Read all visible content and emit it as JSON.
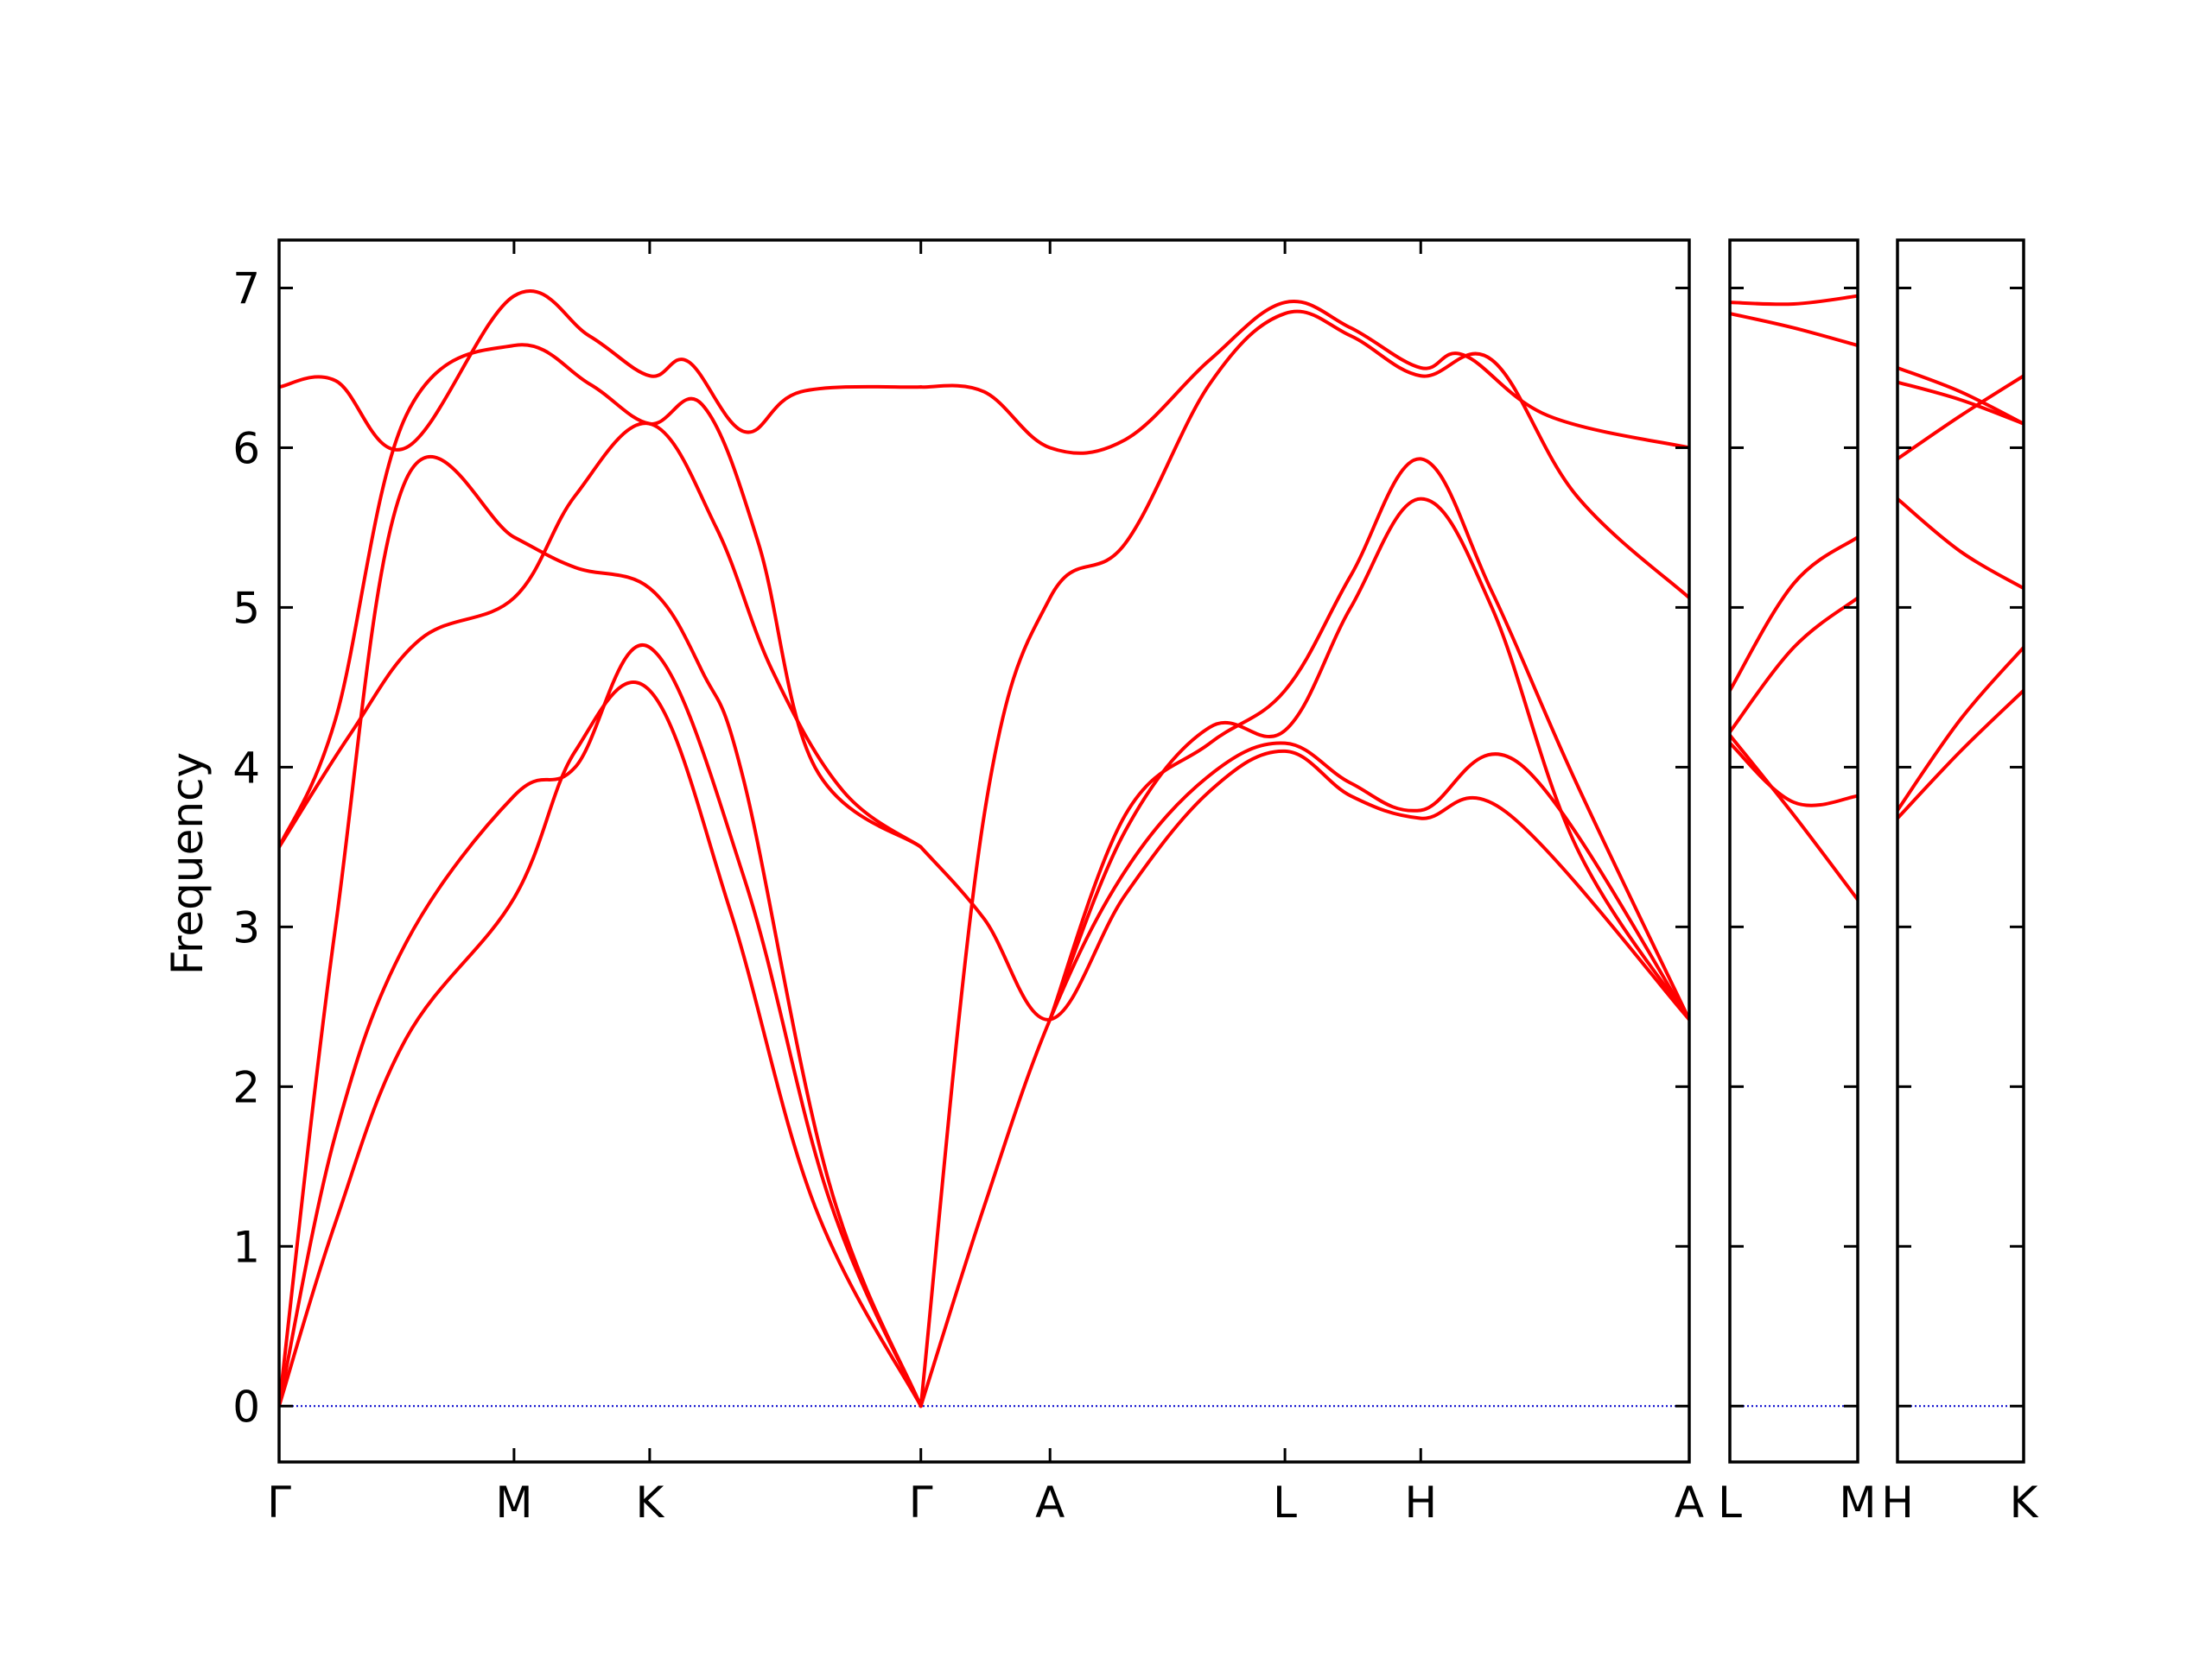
{
  "chart_data": {
    "type": "line",
    "ylabel": "Frequency",
    "ylim": [
      -0.35,
      7.3
    ],
    "y_ticks": [
      "0",
      "1",
      "2",
      "3",
      "4",
      "5",
      "6",
      "7"
    ],
    "y_tick_values": [
      0,
      1,
      2,
      3,
      4,
      5,
      6,
      7
    ],
    "line_color": "#ff0000",
    "zero_line_color": "#0000cc",
    "frame_color": "#000000",
    "panels": [
      {
        "name": "panel-main",
        "xlim": [
          0,
          1
        ],
        "x_ticks": [
          {
            "label": "Γ",
            "x": 0.0
          },
          {
            "label": "M",
            "x": 0.1666
          },
          {
            "label": "K",
            "x": 0.2628
          },
          {
            "label": "Γ",
            "x": 0.4551
          },
          {
            "label": "A",
            "x": 0.5467
          },
          {
            "label": "L",
            "x": 0.7133
          },
          {
            "label": "H",
            "x": 0.8096
          },
          {
            "label": "A",
            "x": 1.0
          }
        ],
        "series": [
          {
            "x": [
              0,
              0.04,
              0.09,
              0.1666,
              0.21,
              0.2628,
              0.32,
              0.38,
              0.4551
            ],
            "values": [
              0,
              1.15,
              2.3,
              3.18,
              4.1,
              4.48,
              3.1,
              1.25,
              0
            ]
          },
          {
            "x": [
              0,
              0.04,
              0.09,
              0.1666,
              0.21,
              0.2628,
              0.33,
              0.39,
              0.4551
            ],
            "values": [
              0,
              1.7,
              2.9,
              3.82,
              4.0,
              4.75,
              3.3,
              1.3,
              0
            ]
          },
          {
            "x": [
              0,
              0.04,
              0.09,
              0.1666,
              0.21,
              0.2628,
              0.3,
              0.33,
              0.39,
              0.4551
            ],
            "values": [
              0,
              3.0,
              5.8,
              5.44,
              5.25,
              5.12,
              4.6,
              3.9,
              1.4,
              0
            ]
          },
          {
            "x": [
              0,
              0.05,
              0.1,
              0.1666,
              0.21,
              0.2628,
              0.31,
              0.35,
              0.4,
              0.4551
            ],
            "values": [
              3.5,
              4.2,
              4.8,
              5.06,
              5.7,
              6.15,
              5.5,
              4.6,
              3.85,
              3.5
            ]
          },
          {
            "x": [
              0,
              0.04,
              0.09,
              0.1666,
              0.22,
              0.2628,
              0.3,
              0.34,
              0.38,
              0.4551
            ],
            "values": [
              3.5,
              4.3,
              6.2,
              6.64,
              6.4,
              6.15,
              6.27,
              5.4,
              4.0,
              3.5
            ]
          },
          {
            "x": [
              0,
              0.04,
              0.09,
              0.1666,
              0.22,
              0.2628,
              0.29,
              0.33,
              0.37,
              0.4551
            ],
            "values": [
              6.38,
              6.42,
              6.0,
              6.95,
              6.7,
              6.45,
              6.54,
              6.1,
              6.35,
              6.38
            ]
          },
          {
            "x": [
              0.4551,
              0.5,
              0.5467,
              0.6,
              0.66,
              0.7133,
              0.76,
              0.8096,
              0.87,
              1.0
            ],
            "values": [
              3.5,
              3.05,
              2.42,
              3.2,
              3.85,
              4.1,
              3.82,
              3.68,
              3.72,
              2.42
            ]
          },
          {
            "x": [
              0.4551,
              0.5,
              0.5467,
              0.6,
              0.66,
              0.7133,
              0.76,
              0.8096,
              0.88,
              1.0
            ],
            "values": [
              0,
              1.25,
              2.42,
              3.35,
              3.95,
              4.15,
              3.9,
              3.73,
              4.02,
              2.42
            ]
          },
          {
            "x": [
              0.5467,
              0.6,
              0.66,
              0.7133,
              0.76,
              0.8096,
              0.86,
              0.92,
              1.0
            ],
            "values": [
              2.42,
              3.6,
              4.25,
              4.23,
              5.0,
              5.68,
              5.0,
              3.5,
              2.42
            ]
          },
          {
            "x": [
              0.5467,
              0.6,
              0.66,
              0.7133,
              0.76,
              0.8096,
              0.86,
              0.92,
              1.0
            ],
            "values": [
              2.42,
              3.7,
              4.15,
              4.48,
              5.2,
              5.93,
              5.1,
              3.9,
              2.42
            ]
          },
          {
            "x": [
              0.4551,
              0.5,
              0.5467,
              0.6,
              0.66,
              0.7133,
              0.76,
              0.8096,
              0.86,
              0.92,
              1.0
            ],
            "values": [
              0,
              3.7,
              5.06,
              5.4,
              6.4,
              6.84,
              6.7,
              6.45,
              6.55,
              5.7,
              5.06
            ]
          },
          {
            "x": [
              0.4551,
              0.5,
              0.5467,
              0.6,
              0.66,
              0.7133,
              0.76,
              0.8096,
              0.84,
              0.9,
              1.0
            ],
            "values": [
              6.38,
              6.35,
              6.0,
              6.05,
              6.55,
              6.91,
              6.75,
              6.5,
              6.58,
              6.2,
              6.0
            ]
          }
        ]
      },
      {
        "name": "panel-lm",
        "xlim": [
          0,
          1
        ],
        "x_ticks": [
          {
            "label": "L",
            "x": 0.0
          },
          {
            "label": "M",
            "x": 1.0
          }
        ],
        "series": [
          {
            "x": [
              0,
              0.5,
              1
            ],
            "values": [
              4.2,
              3.7,
              3.17
            ]
          },
          {
            "x": [
              0,
              0.5,
              1
            ],
            "values": [
              4.15,
              3.78,
              3.82
            ]
          },
          {
            "x": [
              0,
              0.5,
              1
            ],
            "values": [
              4.22,
              4.75,
              5.06
            ]
          },
          {
            "x": [
              0,
              0.5,
              1
            ],
            "values": [
              4.48,
              5.15,
              5.44
            ]
          },
          {
            "x": [
              0,
              0.5,
              1
            ],
            "values": [
              6.84,
              6.75,
              6.64
            ]
          },
          {
            "x": [
              0,
              0.5,
              1
            ],
            "values": [
              6.91,
              6.9,
              6.95
            ]
          }
        ]
      },
      {
        "name": "panel-hk",
        "xlim": [
          0,
          1
        ],
        "x_ticks": [
          {
            "label": "H",
            "x": 0.0
          },
          {
            "label": "K",
            "x": 1.0
          }
        ],
        "series": [
          {
            "x": [
              0,
              0.5,
              1
            ],
            "values": [
              3.68,
              4.1,
              4.48
            ]
          },
          {
            "x": [
              0,
              0.5,
              1
            ],
            "values": [
              3.73,
              4.3,
              4.75
            ]
          },
          {
            "x": [
              0,
              0.5,
              1
            ],
            "values": [
              5.68,
              5.35,
              5.12
            ]
          },
          {
            "x": [
              0,
              0.5,
              1
            ],
            "values": [
              5.93,
              6.2,
              6.45
            ]
          },
          {
            "x": [
              0,
              0.5,
              1
            ],
            "values": [
              6.41,
              6.3,
              6.15
            ]
          },
          {
            "x": [
              0,
              0.5,
              1
            ],
            "values": [
              6.5,
              6.35,
              6.15
            ]
          }
        ]
      }
    ]
  }
}
